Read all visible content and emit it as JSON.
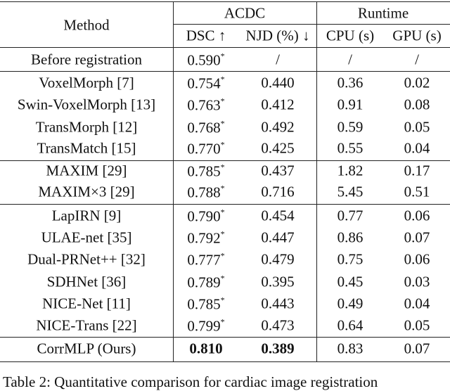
{
  "table": {
    "header": {
      "method": "Method",
      "acdc": "ACDC",
      "runtime": "Runtime",
      "dsc": "DSC ↑",
      "njd": "NJD (%) ↓",
      "cpu": "CPU (s)",
      "gpu": "GPU (s)"
    },
    "rows": [
      {
        "method": "Before registration",
        "dsc": "0.590",
        "dsc_mark": "*",
        "njd": "/",
        "cpu": "/",
        "gpu": "/"
      },
      {
        "method": "VoxelMorph [7]",
        "dsc": "0.754",
        "dsc_mark": "*",
        "njd": "0.440",
        "cpu": "0.36",
        "gpu": "0.02"
      },
      {
        "method": "Swin-VoxelMorph [13]",
        "dsc": "0.763",
        "dsc_mark": "*",
        "njd": "0.412",
        "cpu": "0.91",
        "gpu": "0.08"
      },
      {
        "method": "TransMorph [12]",
        "dsc": "0.768",
        "dsc_mark": "*",
        "njd": "0.492",
        "cpu": "0.59",
        "gpu": "0.05"
      },
      {
        "method": "TransMatch [15]",
        "dsc": "0.770",
        "dsc_mark": "*",
        "njd": "0.425",
        "cpu": "0.55",
        "gpu": "0.04"
      },
      {
        "method": "MAXIM [29]",
        "dsc": "0.785",
        "dsc_mark": "*",
        "njd": "0.437",
        "cpu": "1.82",
        "gpu": "0.17"
      },
      {
        "method": "MAXIM×3 [29]",
        "dsc": "0.788",
        "dsc_mark": "*",
        "njd": "0.716",
        "cpu": "5.45",
        "gpu": "0.51"
      },
      {
        "method": "LapIRN [9]",
        "dsc": "0.790",
        "dsc_mark": "*",
        "njd": "0.454",
        "cpu": "0.77",
        "gpu": "0.06"
      },
      {
        "method": "ULAE-net [35]",
        "dsc": "0.792",
        "dsc_mark": "*",
        "njd": "0.447",
        "cpu": "0.86",
        "gpu": "0.07"
      },
      {
        "method": "Dual-PRNet++ [32]",
        "dsc": "0.777",
        "dsc_mark": "*",
        "njd": "0.479",
        "cpu": "0.75",
        "gpu": "0.06"
      },
      {
        "method": "SDHNet [36]",
        "dsc": "0.789",
        "dsc_mark": "*",
        "njd": "0.395",
        "cpu": "0.45",
        "gpu": "0.03"
      },
      {
        "method": "NICE-Net [11]",
        "dsc": "0.785",
        "dsc_mark": "*",
        "njd": "0.443",
        "cpu": "0.49",
        "gpu": "0.04"
      },
      {
        "method": "NICE-Trans [22]",
        "dsc": "0.799",
        "dsc_mark": "*",
        "njd": "0.473",
        "cpu": "0.64",
        "gpu": "0.05"
      },
      {
        "method": "CorrMLP (Ours)",
        "dsc": "0.810",
        "njd": "0.389",
        "cpu": "0.83",
        "gpu": "0.07"
      }
    ],
    "caption": "Table 2: Quantitative comparison for cardiac image registration"
  }
}
